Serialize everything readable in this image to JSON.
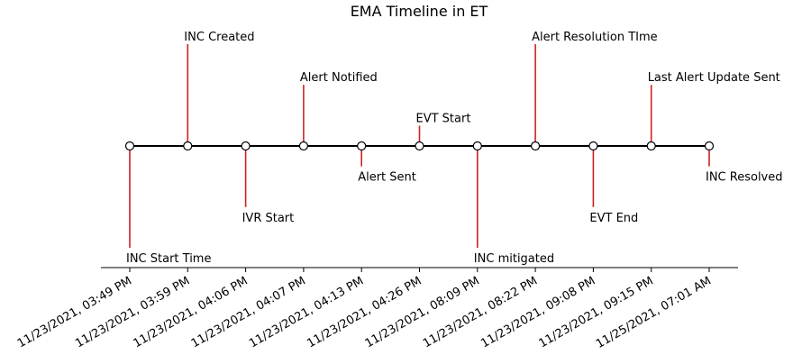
{
  "chart_data": {
    "type": "timeline",
    "title": "EMA Timeline in ET",
    "xlabel": "",
    "ylabel": "",
    "stem_color": "#cc2222",
    "line_color": "#000000",
    "marker_face_color": "#ffffff",
    "grid": false,
    "events": [
      {
        "time": "11/23/2021, 03:49 PM",
        "label": "INC Start Time",
        "level": -5
      },
      {
        "time": "11/23/2021, 03:59 PM",
        "label": "INC Created",
        "level": 5
      },
      {
        "time": "11/23/2021, 04:06 PM",
        "label": "IVR Start",
        "level": -3
      },
      {
        "time": "11/23/2021, 04:07 PM",
        "label": "Alert Notified",
        "level": 3
      },
      {
        "time": "11/23/2021, 04:13 PM",
        "label": "Alert Sent",
        "level": -1
      },
      {
        "time": "11/23/2021, 04:26 PM",
        "label": "EVT Start",
        "level": 1
      },
      {
        "time": "11/23/2021, 08:09 PM",
        "label": "INC mitigated",
        "level": -5
      },
      {
        "time": "11/23/2021, 08:22 PM",
        "label": "Alert Resolution TIme",
        "level": 5
      },
      {
        "time": "11/23/2021, 09:08 PM",
        "label": "EVT End",
        "level": -3
      },
      {
        "time": "11/23/2021, 09:15 PM",
        "label": "Last Alert Update Sent",
        "level": 3
      },
      {
        "time": "11/25/2021, 07:01 AM",
        "label": "INC Resolved",
        "level": -1
      }
    ]
  }
}
